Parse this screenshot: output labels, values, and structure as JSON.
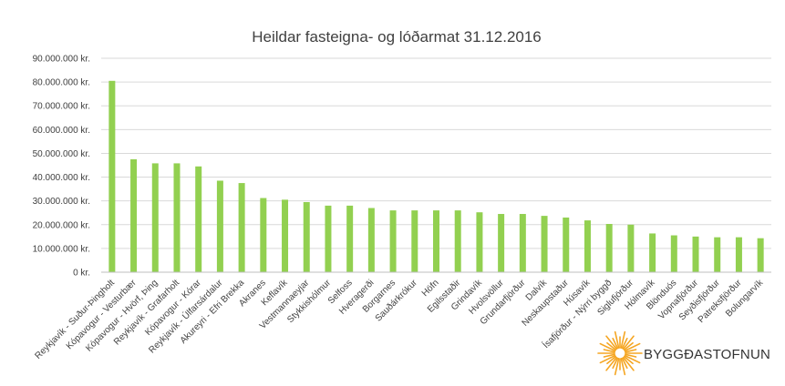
{
  "chart_data": {
    "type": "bar",
    "title": "Heildar fasteigna- og lóðarmat 31.12.2016",
    "xlabel": "",
    "ylabel": "",
    "ylim": [
      0,
      90000000
    ],
    "yticks": [
      0,
      10000000,
      20000000,
      30000000,
      40000000,
      50000000,
      60000000,
      70000000,
      80000000,
      90000000
    ],
    "ytick_labels": [
      "0 kr.",
      "10.000.000 kr.",
      "20.000.000 kr.",
      "30.000.000 kr.",
      "40.000.000 kr.",
      "50.000.000 kr.",
      "60.000.000 kr.",
      "70.000.000 kr.",
      "80.000.000 kr.",
      "90.000.000 kr."
    ],
    "grid": true,
    "legend": "none",
    "bar_color": "#92d050",
    "categories": [
      "Reykjavík - Suður-Þingholt",
      "Kópavogur - Vesturbær",
      "Kópavogur - Hvörf, Þing",
      "Reykjavík - Grafarholt",
      "Kópavogur - Kórar",
      "Reykjavík - Úlfarsárdalur",
      "Akureyri - Efri Brekka",
      "Akranes",
      "Keflavík",
      "Vestmannaeyjar",
      "Stykkishólmur",
      "Selfoss",
      "Hveragerði",
      "Borgarnes",
      "Sauðárkrókur",
      "Höfn",
      "Egilsstaðir",
      "Grindavík",
      "Hvolsvöllur",
      "Grundarfjörður",
      "Dalvík",
      "Neskaupstaður",
      "Húsavík",
      "Ísafjörður - Nýrri byggð",
      "Siglufjörður",
      "Hólmavík",
      "Blönduós",
      "Vopnafjörður",
      "Seyðisfjörður",
      "Patreksfjörður",
      "Bolungarvík"
    ],
    "values": [
      80500000,
      47500000,
      45800000,
      45800000,
      44500000,
      38500000,
      37500000,
      31200000,
      30500000,
      29500000,
      28000000,
      28000000,
      27000000,
      26000000,
      26000000,
      26000000,
      26000000,
      25200000,
      24500000,
      24500000,
      23700000,
      23000000,
      21800000,
      20300000,
      20000000,
      16300000,
      15500000,
      15000000,
      14700000,
      14700000,
      14300000
    ]
  },
  "logo": {
    "text": "BYGGÐASTOFNUN",
    "sun_color": "#f5a623",
    "icon": "sunburst-logo-icon"
  }
}
